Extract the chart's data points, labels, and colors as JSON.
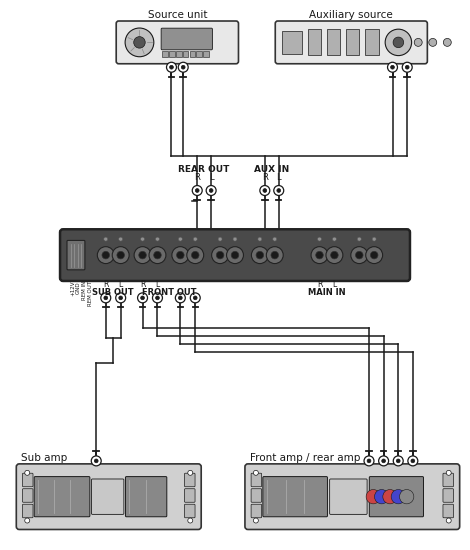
{
  "bg_color": "#ffffff",
  "line_color": "#1a1a1a",
  "source_unit_label": "Source unit",
  "aux_source_label": "Auxiliary source",
  "rear_out_label": "REAR OUT",
  "aux_in_label": "AUX IN",
  "sub_out_label": "SUB OUT",
  "front_out_label": "FRONT OUT",
  "main_in_label": "MAIN IN",
  "sub_amp_label": "Sub amp",
  "front_amp_label": "Front amp / rear amp",
  "eq_fill": "#4a4a4a",
  "eq_edge": "#222222",
  "device_fill": "#e8e8e8",
  "device_edge": "#333333",
  "amp_fill": "#d0d0d0",
  "amp_edge": "#333333",
  "wire_color": "#1a1a1a",
  "rca_outer": "#ffffff",
  "rca_inner": "#333333",
  "rca_stem": "#333333"
}
